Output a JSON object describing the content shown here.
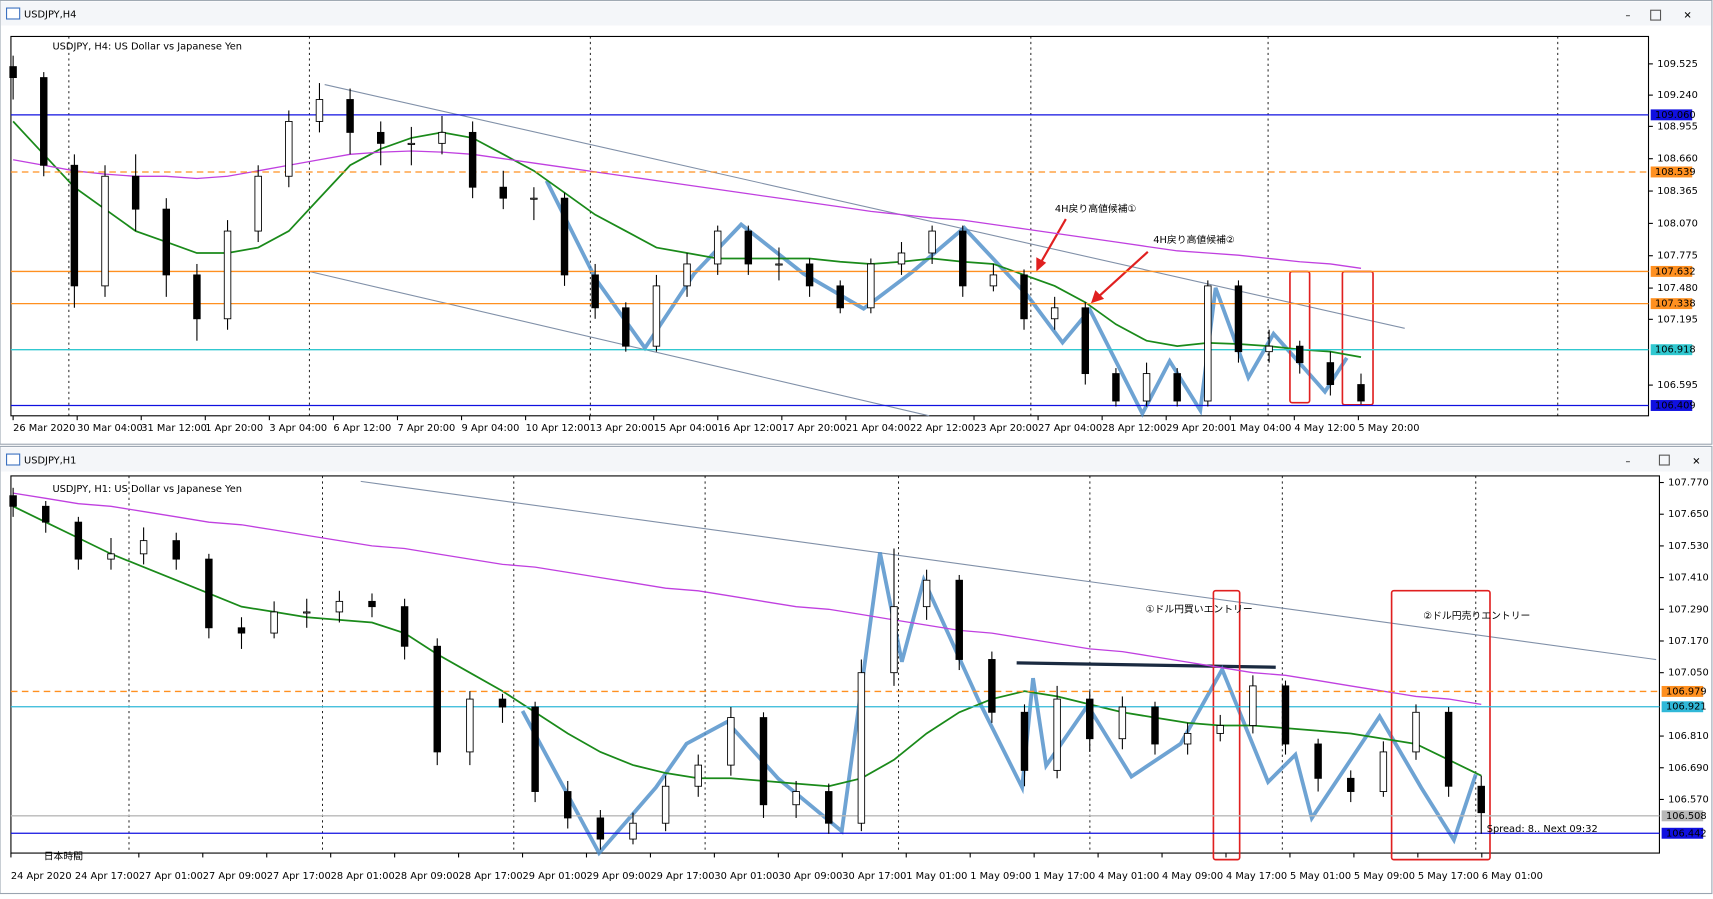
{
  "chart_data": [
    {
      "type": "candlestick",
      "window_title": "USDJPY,H4",
      "title": "USDJPY, H4:  US Dollar vs Japanese Yen",
      "ylim": [
        106.315,
        109.775
      ],
      "yticks": [
        109.525,
        {
          "value": 109.24,
          "label": "109.240"
        },
        108.955,
        {
          "value": 108.66,
          "label": "108.660"
        },
        108.365,
        {
          "value": 108.07,
          "label": "108.070"
        },
        107.775,
        {
          "value": 107.48,
          "label": "107.480"
        },
        107.195,
        106.595
      ],
      "levels": [
        {
          "value": 109.06,
          "label": "109.060",
          "color": "#1010e0",
          "style": "solid"
        },
        {
          "value": 108.539,
          "label": "108.539",
          "color": "#ff9020",
          "style": "dashed"
        },
        {
          "value": 107.632,
          "label": "107.632",
          "color": "#ff9020",
          "style": "solid"
        },
        {
          "value": 107.338,
          "label": "107.338",
          "color": "#ff9020",
          "style": "solid"
        },
        {
          "value": 106.918,
          "label": "106.918",
          "color": "#30c8d0",
          "style": "solid"
        },
        {
          "value": 106.409,
          "label": "106.409",
          "color": "#1010e0",
          "style": "solid"
        }
      ],
      "xlabels": [
        "26 Mar 2020",
        "30 Mar 04:00",
        "31 Mar 12:00",
        "1 Apr 20:00",
        "3 Apr 04:00",
        "6 Apr 12:00",
        "7 Apr 20:00",
        "9 Apr 04:00",
        "10 Apr 12:00",
        "13 Apr 20:00",
        "15 Apr 04:00",
        "16 Apr 12:00",
        "17 Apr 20:00",
        "21 Apr 04:00",
        "22 Apr 12:00",
        "23 Apr 20:00",
        "27 Apr 04:00",
        "28 Apr 12:00",
        "29 Apr 20:00",
        "1 May 04:00",
        "4 May 12:00",
        "5 May 20:00"
      ],
      "ohlc": [
        [
          109.5,
          109.6,
          109.2,
          109.4
        ],
        [
          109.4,
          109.45,
          108.5,
          108.6
        ],
        [
          108.6,
          108.7,
          107.3,
          107.5
        ],
        [
          107.5,
          108.6,
          107.4,
          108.5
        ],
        [
          108.5,
          108.7,
          108.0,
          108.2
        ],
        [
          108.2,
          108.3,
          107.4,
          107.6
        ],
        [
          107.6,
          107.7,
          107.0,
          107.2
        ],
        [
          107.2,
          108.1,
          107.1,
          108.0
        ],
        [
          108.0,
          108.6,
          107.9,
          108.5
        ],
        [
          108.5,
          109.1,
          108.4,
          109.0
        ],
        [
          109.0,
          109.35,
          108.9,
          109.2
        ],
        [
          109.2,
          109.3,
          108.7,
          108.9
        ],
        [
          108.9,
          109.0,
          108.6,
          108.8
        ],
        [
          108.8,
          108.95,
          108.6,
          108.8
        ],
        [
          108.8,
          109.05,
          108.7,
          108.9
        ],
        [
          108.9,
          109.0,
          108.3,
          108.4
        ],
        [
          108.4,
          108.55,
          108.2,
          108.3
        ],
        [
          108.3,
          108.4,
          108.1,
          108.3
        ],
        [
          108.3,
          108.35,
          107.5,
          107.6
        ],
        [
          107.6,
          107.7,
          107.2,
          107.3
        ],
        [
          107.3,
          107.35,
          106.9,
          106.95
        ],
        [
          106.95,
          107.6,
          106.9,
          107.5
        ],
        [
          107.5,
          107.8,
          107.4,
          107.7
        ],
        [
          107.7,
          108.05,
          107.6,
          108.0
        ],
        [
          108.0,
          108.05,
          107.6,
          107.7
        ],
        [
          107.7,
          107.85,
          107.55,
          107.7
        ],
        [
          107.7,
          107.75,
          107.4,
          107.5
        ],
        [
          107.5,
          107.55,
          107.25,
          107.3
        ],
        [
          107.3,
          107.75,
          107.25,
          107.7
        ],
        [
          107.7,
          107.9,
          107.6,
          107.8
        ],
        [
          107.8,
          108.05,
          107.7,
          108.0
        ],
        [
          108.0,
          108.05,
          107.4,
          107.5
        ],
        [
          107.5,
          107.7,
          107.45,
          107.6
        ],
        [
          107.6,
          107.65,
          107.1,
          107.2
        ],
        [
          107.2,
          107.4,
          107.1,
          107.3
        ],
        [
          107.3,
          107.35,
          106.6,
          106.7
        ],
        [
          106.7,
          106.75,
          106.4,
          106.45
        ],
        [
          106.45,
          106.8,
          106.4,
          106.7
        ],
        [
          106.7,
          106.75,
          106.4,
          106.45
        ],
        [
          106.45,
          107.55,
          106.4,
          107.5
        ],
        [
          107.5,
          107.55,
          106.8,
          106.9
        ],
        [
          106.9,
          107.1,
          106.8,
          106.95
        ],
        [
          106.95,
          107.0,
          106.7,
          106.8
        ],
        [
          106.8,
          106.9,
          106.5,
          106.6
        ],
        [
          106.6,
          106.7,
          106.42,
          106.45
        ]
      ],
      "series": [
        {
          "color": "#1a8a1a",
          "values": [
            109.0,
            108.7,
            108.4,
            108.2,
            108.0,
            107.9,
            107.8,
            107.8,
            107.85,
            108.0,
            108.3,
            108.6,
            108.75,
            108.85,
            108.9,
            108.85,
            108.7,
            108.55,
            108.35,
            108.15,
            108.0,
            107.85,
            107.8,
            107.75,
            107.75,
            107.75,
            107.75,
            107.72,
            107.7,
            107.72,
            107.75,
            107.72,
            107.7,
            107.6,
            107.5,
            107.35,
            107.15,
            107.0,
            106.95,
            106.98,
            106.97,
            106.95,
            106.92,
            106.9,
            106.85
          ]
        },
        {
          "color": "#c040e0",
          "values": [
            108.65,
            108.6,
            108.55,
            108.52,
            108.5,
            108.5,
            108.48,
            108.5,
            108.55,
            108.6,
            108.65,
            108.7,
            108.72,
            108.73,
            108.72,
            108.7,
            108.66,
            108.62,
            108.58,
            108.54,
            108.5,
            108.46,
            108.42,
            108.38,
            108.34,
            108.3,
            108.26,
            108.22,
            108.18,
            108.15,
            108.12,
            108.1,
            108.06,
            108.02,
            107.98,
            107.94,
            107.9,
            107.86,
            107.82,
            107.8,
            107.78,
            107.75,
            107.72,
            107.7,
            107.66
          ]
        }
      ],
      "annotations": [
        {
          "text": "4H戻り高値候補①",
          "color": "#e02020"
        },
        {
          "text": "4H戻り高値候補②",
          "color": "#e02020"
        }
      ]
    },
    {
      "type": "candlestick",
      "window_title": "USDJPY,H1",
      "title": "USDJPY, H1:  US Dollar vs Japanese Yen",
      "ylim": [
        106.367,
        107.795
      ],
      "yticks": [
        {
          "value": 107.77,
          "label": "107.770"
        },
        {
          "value": 107.65,
          "label": "107.650"
        },
        {
          "value": 107.53,
          "label": "107.530"
        },
        {
          "value": 107.41,
          "label": "107.410"
        },
        {
          "value": 107.29,
          "label": "107.290"
        },
        {
          "value": 107.17,
          "label": "107.170"
        },
        {
          "value": 107.05,
          "label": "107.050"
        },
        {
          "value": 106.81,
          "label": "106.810"
        },
        {
          "value": 106.69,
          "label": "106.690"
        },
        {
          "value": 106.57,
          "label": "106.570"
        }
      ],
      "levels": [
        {
          "value": 106.979,
          "label": "106.979",
          "color": "#ff9020",
          "style": "dashed"
        },
        {
          "value": 106.921,
          "label": "106.921",
          "color": "#30b8d8",
          "style": "solid"
        },
        {
          "value": 106.508,
          "label": "106.508",
          "color": "#b8b8b8",
          "style": "solid"
        },
        {
          "value": 106.442,
          "label": "106.442",
          "color": "#1010e0",
          "style": "solid"
        }
      ],
      "xlabels": [
        "24 Apr 2020",
        "24 Apr 17:00",
        "27 Apr 01:00",
        "27 Apr 09:00",
        "27 Apr 17:00",
        "28 Apr 01:00",
        "28 Apr 09:00",
        "28 Apr 17:00",
        "29 Apr 01:00",
        "29 Apr 09:00",
        "29 Apr 17:00",
        "30 Apr 01:00",
        "30 Apr 09:00",
        "30 Apr 17:00",
        "1 May 01:00",
        "1 May 09:00",
        "1 May 17:00",
        "4 May 01:00",
        "4 May 09:00",
        "4 May 17:00",
        "5 May 01:00",
        "5 May 09:00",
        "5 May 17:00",
        "6 May 01:00"
      ],
      "ohlc": [
        [
          107.72,
          107.75,
          107.64,
          107.68
        ],
        [
          107.68,
          107.7,
          107.58,
          107.62
        ],
        [
          107.62,
          107.64,
          107.44,
          107.48
        ],
        [
          107.48,
          107.56,
          107.44,
          107.5
        ],
        [
          107.5,
          107.6,
          107.46,
          107.55
        ],
        [
          107.55,
          107.58,
          107.44,
          107.48
        ],
        [
          107.48,
          107.5,
          107.18,
          107.22
        ],
        [
          107.22,
          107.26,
          107.14,
          107.2
        ],
        [
          107.2,
          107.32,
          107.18,
          107.28
        ],
        [
          107.28,
          107.33,
          107.22,
          107.28
        ],
        [
          107.28,
          107.36,
          107.24,
          107.32
        ],
        [
          107.32,
          107.35,
          107.26,
          107.3
        ],
        [
          107.3,
          107.33,
          107.1,
          107.15
        ],
        [
          107.15,
          107.18,
          106.7,
          106.75
        ],
        [
          106.75,
          106.98,
          106.7,
          106.95
        ],
        [
          106.95,
          106.97,
          106.86,
          106.92
        ],
        [
          106.92,
          106.94,
          106.56,
          106.6
        ],
        [
          106.6,
          106.64,
          106.46,
          106.5
        ],
        [
          106.5,
          106.53,
          106.38,
          106.42
        ],
        [
          106.42,
          106.52,
          106.4,
          106.48
        ],
        [
          106.48,
          106.66,
          106.45,
          106.62
        ],
        [
          106.62,
          106.74,
          106.58,
          106.7
        ],
        [
          106.7,
          106.92,
          106.66,
          106.88
        ],
        [
          106.88,
          106.9,
          106.5,
          106.55
        ],
        [
          106.55,
          106.64,
          106.5,
          106.6
        ],
        [
          106.6,
          106.63,
          106.44,
          106.48
        ],
        [
          106.48,
          107.1,
          106.45,
          107.05
        ],
        [
          107.05,
          107.52,
          107.0,
          107.3
        ],
        [
          107.3,
          107.44,
          107.25,
          107.4
        ],
        [
          107.4,
          107.42,
          107.06,
          107.1
        ],
        [
          107.1,
          107.13,
          106.86,
          106.9
        ],
        [
          106.9,
          106.93,
          106.62,
          106.68
        ],
        [
          106.68,
          107.0,
          106.65,
          106.95
        ],
        [
          106.95,
          106.98,
          106.75,
          106.8
        ],
        [
          106.8,
          106.96,
          106.76,
          106.92
        ],
        [
          106.92,
          106.94,
          106.74,
          106.78
        ],
        [
          106.78,
          106.86,
          106.74,
          106.82
        ],
        [
          106.82,
          106.89,
          106.79,
          106.85
        ],
        [
          106.85,
          107.04,
          106.82,
          107.0
        ],
        [
          107.0,
          107.02,
          106.74,
          106.78
        ],
        [
          106.78,
          106.8,
          106.6,
          106.65
        ],
        [
          106.65,
          106.68,
          106.56,
          106.6
        ],
        [
          106.6,
          106.79,
          106.58,
          106.75
        ],
        [
          106.75,
          106.93,
          106.72,
          106.9
        ],
        [
          106.9,
          106.92,
          106.58,
          106.62
        ],
        [
          106.62,
          106.66,
          106.44,
          106.52
        ]
      ],
      "series": [
        {
          "color": "#1a8a1a",
          "values": [
            107.68,
            107.62,
            107.56,
            107.5,
            107.45,
            107.4,
            107.35,
            107.3,
            107.28,
            107.26,
            107.25,
            107.24,
            107.2,
            107.12,
            107.05,
            106.98,
            106.9,
            106.82,
            106.75,
            106.7,
            106.67,
            106.65,
            106.65,
            106.64,
            106.63,
            106.62,
            106.65,
            106.72,
            106.82,
            106.9,
            106.95,
            106.98,
            106.96,
            106.93,
            106.9,
            106.88,
            106.86,
            106.85,
            106.85,
            106.84,
            106.83,
            106.82,
            106.8,
            106.78,
            106.72,
            106.66
          ]
        },
        {
          "color": "#c040e0",
          "values": [
            107.73,
            107.71,
            107.69,
            107.68,
            107.66,
            107.64,
            107.62,
            107.61,
            107.59,
            107.57,
            107.55,
            107.53,
            107.52,
            107.5,
            107.48,
            107.46,
            107.45,
            107.43,
            107.41,
            107.39,
            107.37,
            107.36,
            107.34,
            107.32,
            107.3,
            107.29,
            107.27,
            107.25,
            107.23,
            107.21,
            107.2,
            107.18,
            107.16,
            107.14,
            107.13,
            107.11,
            107.09,
            107.07,
            107.05,
            107.04,
            107.02,
            107.0,
            106.98,
            106.96,
            106.95,
            106.93
          ]
        }
      ],
      "annotations": [
        {
          "text": "①ドル円買いエントリー",
          "color": "#e02020"
        },
        {
          "text": "②ドル円売りエントリー",
          "color": "#e02020"
        },
        {
          "text": "Spread: 8.. Next 09:32",
          "color": "#9a9a9a"
        },
        {
          "text": "日本時間",
          "color": "#606060"
        }
      ]
    }
  ]
}
